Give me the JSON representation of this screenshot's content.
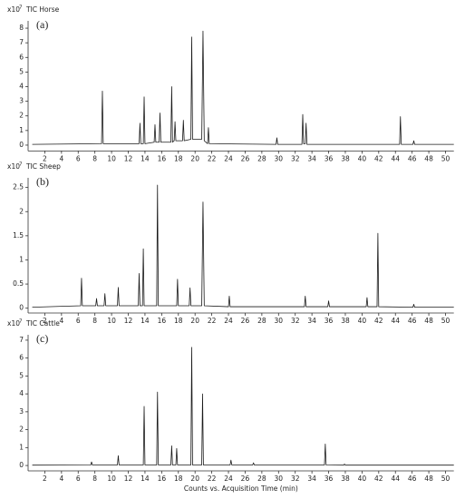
{
  "chart_data": [
    {
      "type": "line",
      "title": "TIC Horse",
      "y_multiplier": "x10",
      "y_exponent": "7",
      "annotation": "(a)",
      "color": "#1a1a1a",
      "xlim": [
        0,
        51
      ],
      "ylim": [
        -0.4,
        8.5
      ],
      "xticks": [
        2,
        4,
        6,
        8,
        10,
        12,
        14,
        16,
        18,
        20,
        22,
        24,
        26,
        28,
        30,
        32,
        34,
        36,
        38,
        40,
        42,
        44,
        46,
        48,
        50
      ],
      "yticks": [
        0,
        1,
        2,
        3,
        4,
        5,
        6,
        7,
        8
      ],
      "x": [
        0.5,
        8.8,
        8.9,
        9.0,
        13.3,
        13.4,
        13.5,
        13.8,
        13.9,
        14.0,
        15.1,
        15.2,
        15.3,
        15.7,
        15.8,
        15.9,
        17.1,
        17.2,
        17.3,
        17.5,
        17.6,
        17.7,
        18.5,
        18.6,
        18.7,
        19.5,
        19.6,
        19.7,
        20.8,
        20.95,
        21.1,
        21.5,
        21.6,
        21.7,
        29.7,
        29.8,
        29.9,
        32.8,
        32.9,
        33.0,
        33.2,
        33.3,
        33.4,
        44.5,
        44.6,
        44.7,
        46.1,
        46.2,
        46.3,
        51
      ],
      "values": [
        0.05,
        0.1,
        3.7,
        0.1,
        0.1,
        1.5,
        0.1,
        0.1,
        3.3,
        0.1,
        0.2,
        1.4,
        0.2,
        0.2,
        2.2,
        0.2,
        0.2,
        4.0,
        0.2,
        0.3,
        1.6,
        0.3,
        0.3,
        1.7,
        0.3,
        0.4,
        7.4,
        0.4,
        0.4,
        7.8,
        0.3,
        0.1,
        1.2,
        0.1,
        0.05,
        0.5,
        0.05,
        0.05,
        2.1,
        0.1,
        0.1,
        1.5,
        0.05,
        0.05,
        1.95,
        0.05,
        0.05,
        0.3,
        0.05,
        0.05
      ]
    },
    {
      "type": "line",
      "title": "TIC Sheep",
      "y_multiplier": "x10",
      "y_exponent": "7",
      "annotation": "(b)",
      "color": "#1a1a1a",
      "xlim": [
        0,
        51
      ],
      "ylim": [
        -0.1,
        2.7
      ],
      "xticks": [
        2,
        4,
        6,
        8,
        10,
        12,
        14,
        16,
        18,
        20,
        22,
        24,
        26,
        28,
        30,
        32,
        34,
        36,
        38,
        40,
        42,
        44,
        46,
        48,
        50
      ],
      "yticks": [
        0,
        0.5,
        1,
        1.5,
        2,
        2.5
      ],
      "x": [
        0.5,
        6.3,
        6.4,
        6.5,
        8.1,
        8.2,
        8.3,
        9.1,
        9.2,
        9.3,
        10.7,
        10.8,
        10.9,
        13.2,
        13.3,
        13.4,
        13.7,
        13.8,
        13.9,
        15.4,
        15.5,
        15.6,
        17.8,
        17.9,
        18.0,
        19.3,
        19.4,
        19.5,
        20.8,
        20.95,
        21.1,
        24.0,
        24.1,
        24.2,
        33.1,
        33.2,
        33.3,
        35.9,
        36.0,
        36.1,
        40.5,
        40.6,
        40.7,
        41.8,
        41.9,
        42.0,
        46.1,
        46.2,
        46.3,
        51
      ],
      "values": [
        0.02,
        0.05,
        0.62,
        0.05,
        0.05,
        0.2,
        0.05,
        0.05,
        0.3,
        0.05,
        0.05,
        0.43,
        0.05,
        0.05,
        0.72,
        0.05,
        0.05,
        1.23,
        0.05,
        0.05,
        2.55,
        0.05,
        0.05,
        0.6,
        0.05,
        0.05,
        0.42,
        0.05,
        0.05,
        2.2,
        0.05,
        0.03,
        0.25,
        0.03,
        0.03,
        0.25,
        0.03,
        0.03,
        0.15,
        0.03,
        0.03,
        0.22,
        0.03,
        0.03,
        1.55,
        0.03,
        0.02,
        0.08,
        0.02,
        0.02
      ]
    },
    {
      "type": "line",
      "title": "TIC Cattle",
      "y_multiplier": "x10",
      "y_exponent": "7",
      "annotation": "(c)",
      "color": "#1a1a1a",
      "xlabel": "Counts vs. Acquisition Time (min)",
      "xlim": [
        0,
        51
      ],
      "ylim": [
        -0.3,
        7.3
      ],
      "xticks": [
        2,
        4,
        6,
        8,
        10,
        12,
        14,
        16,
        18,
        20,
        22,
        24,
        26,
        28,
        30,
        32,
        34,
        36,
        38,
        40,
        42,
        44,
        46,
        48,
        50
      ],
      "yticks": [
        0,
        1,
        2,
        3,
        4,
        5,
        6,
        7
      ],
      "x": [
        0.5,
        7.5,
        7.6,
        7.7,
        10.7,
        10.8,
        10.9,
        13.8,
        13.9,
        14.0,
        15.4,
        15.5,
        15.6,
        17.1,
        17.2,
        17.3,
        17.7,
        17.8,
        17.9,
        19.5,
        19.6,
        19.7,
        20.8,
        20.9,
        21.0,
        24.2,
        24.3,
        24.4,
        26.9,
        27.0,
        27.1,
        35.5,
        35.6,
        35.7,
        37.8,
        37.9,
        38.0,
        51
      ],
      "values": [
        0.02,
        0.03,
        0.2,
        0.03,
        0.03,
        0.55,
        0.03,
        0.03,
        3.3,
        0.03,
        0.03,
        4.1,
        0.03,
        0.03,
        1.1,
        0.03,
        0.03,
        0.95,
        0.03,
        0.03,
        6.6,
        0.03,
        0.03,
        4.0,
        0.03,
        0.03,
        0.3,
        0.03,
        0.03,
        0.15,
        0.03,
        0.03,
        1.2,
        0.03,
        0.02,
        0.08,
        0.02,
        0.02
      ]
    }
  ]
}
